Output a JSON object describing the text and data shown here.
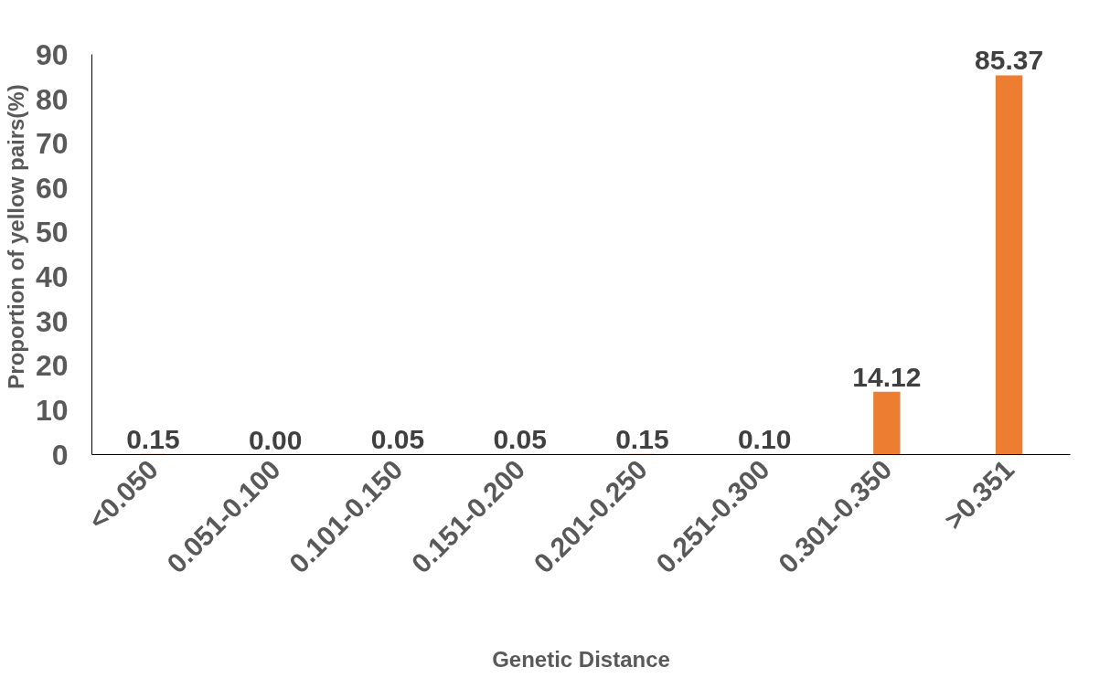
{
  "chart_data": {
    "type": "bar",
    "xlabel": "Genetic Distance",
    "ylabel": "Proportion of yellow pairs(%)",
    "categories": [
      "<0.050",
      "0.051-0.100",
      "0.101-0.150",
      "0.151-0.200",
      "0.201-0.250",
      "0.251-0.300",
      "0.301-0.350",
      ">0.351"
    ],
    "values": [
      0.15,
      0.0,
      0.05,
      0.05,
      0.15,
      0.1,
      14.12,
      85.37
    ],
    "value_labels": [
      "0.15",
      "0.00",
      "0.05",
      "0.05",
      "0.15",
      "0.10",
      "14.12",
      "85.37"
    ],
    "color": "#ed7d31",
    "ylim": [
      0,
      90
    ],
    "yticks": [
      0,
      10,
      20,
      30,
      40,
      50,
      60,
      70,
      80,
      90
    ],
    "grid": false
  }
}
